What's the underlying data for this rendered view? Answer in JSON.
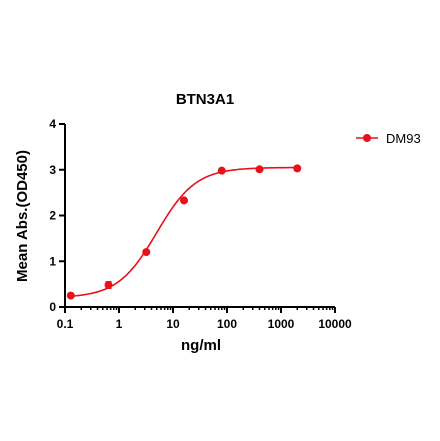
{
  "chart_data": {
    "type": "scatter",
    "title": "BTN3A1",
    "xlabel": "ng/ml",
    "ylabel": "Mean Abs.(OD450)",
    "x_scale": "log",
    "xlim": [
      0.1,
      10000
    ],
    "ylim": [
      0,
      4
    ],
    "x_ticks": [
      "0.1",
      "1",
      "10",
      "100",
      "1000",
      "10000"
    ],
    "y_ticks": [
      "0",
      "1",
      "2",
      "3",
      "4"
    ],
    "legend_position": "top-right",
    "grid": false,
    "fit": {
      "model": "4PL",
      "bottom": 0.2,
      "top": 3.05,
      "ec50": 5.0,
      "hill": 1.2
    },
    "series": [
      {
        "name": "DM93",
        "color": "#e8101a",
        "x": [
          0.128,
          0.64,
          3.2,
          16,
          80,
          400,
          2000
        ],
        "y": [
          0.25,
          0.48,
          1.2,
          2.33,
          2.98,
          3.01,
          3.03
        ],
        "error": [
          0.02,
          0.07,
          0.03,
          0.03,
          0.02,
          0.02,
          0.02
        ]
      }
    ]
  }
}
